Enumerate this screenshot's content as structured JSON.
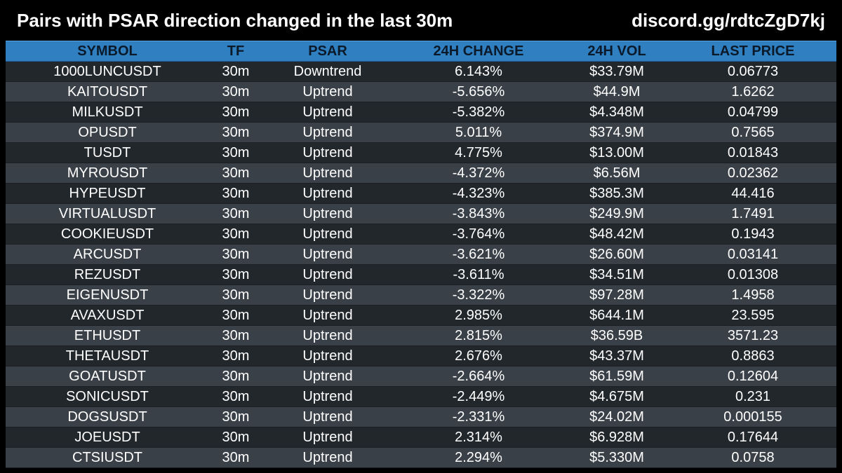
{
  "header": {
    "title": "Pairs with PSAR direction changed in the last 30m",
    "link": "discord.gg/rdtcZgD7kj"
  },
  "table": {
    "columns": [
      "SYMBOL",
      "TF",
      "PSAR",
      "24H CHANGE",
      "24H VOL",
      "LAST PRICE"
    ],
    "rows": [
      [
        "1000LUNCUSDT",
        "30m",
        "Downtrend",
        "6.143%",
        "$33.79M",
        "0.06773"
      ],
      [
        "KAITOUSDT",
        "30m",
        "Uptrend",
        "-5.656%",
        "$44.9M",
        "1.6262"
      ],
      [
        "MILKUSDT",
        "30m",
        "Uptrend",
        "-5.382%",
        "$4.348M",
        "0.04799"
      ],
      [
        "OPUSDT",
        "30m",
        "Uptrend",
        "5.011%",
        "$374.9M",
        "0.7565"
      ],
      [
        "TUSDT",
        "30m",
        "Uptrend",
        "4.775%",
        "$13.00M",
        "0.01843"
      ],
      [
        "MYROUSDT",
        "30m",
        "Uptrend",
        "-4.372%",
        "$6.56M",
        "0.02362"
      ],
      [
        "HYPEUSDT",
        "30m",
        "Uptrend",
        "-4.323%",
        "$385.3M",
        "44.416"
      ],
      [
        "VIRTUALUSDT",
        "30m",
        "Uptrend",
        "-3.843%",
        "$249.9M",
        "1.7491"
      ],
      [
        "COOKIEUSDT",
        "30m",
        "Uptrend",
        "-3.764%",
        "$48.42M",
        "0.1943"
      ],
      [
        "ARCUSDT",
        "30m",
        "Uptrend",
        "-3.621%",
        "$26.60M",
        "0.03141"
      ],
      [
        "REZUSDT",
        "30m",
        "Uptrend",
        "-3.611%",
        "$34.51M",
        "0.01308"
      ],
      [
        "EIGENUSDT",
        "30m",
        "Uptrend",
        "-3.322%",
        "$97.28M",
        "1.4958"
      ],
      [
        "AVAXUSDT",
        "30m",
        "Uptrend",
        "2.985%",
        "$644.1M",
        "23.595"
      ],
      [
        "ETHUSDT",
        "30m",
        "Uptrend",
        "2.815%",
        "$36.59B",
        "3571.23"
      ],
      [
        "THETAUSDT",
        "30m",
        "Uptrend",
        "2.676%",
        "$43.37M",
        "0.8863"
      ],
      [
        "GOATUSDT",
        "30m",
        "Uptrend",
        "-2.664%",
        "$61.59M",
        "0.12604"
      ],
      [
        "SONICUSDT",
        "30m",
        "Uptrend",
        "-2.449%",
        "$4.675M",
        "0.231"
      ],
      [
        "DOGSUSDT",
        "30m",
        "Uptrend",
        "-2.331%",
        "$24.02M",
        "0.000155"
      ],
      [
        "JOEUSDT",
        "30m",
        "Uptrend",
        "2.314%",
        "$6.928M",
        "0.17644"
      ],
      [
        "CTSIUSDT",
        "30m",
        "Uptrend",
        "2.294%",
        "$5.330M",
        "0.0758"
      ]
    ]
  }
}
